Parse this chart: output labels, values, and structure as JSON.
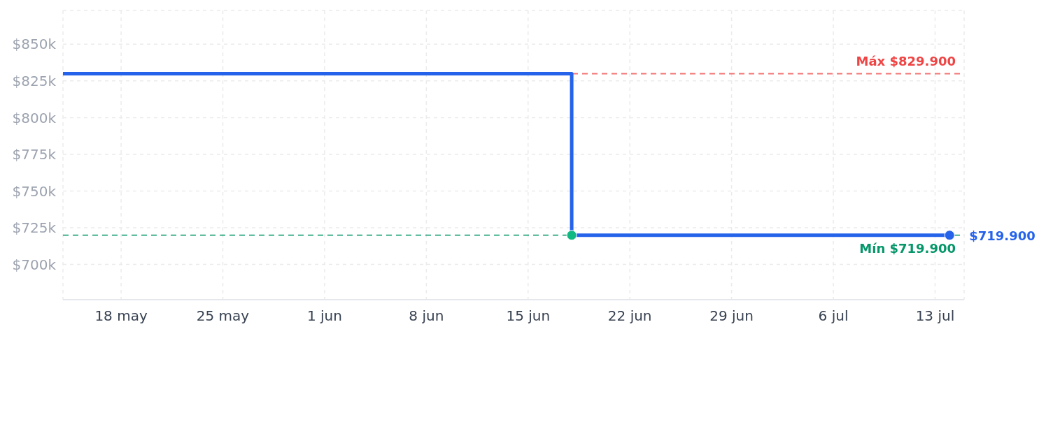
{
  "chart_data": {
    "type": "step",
    "xlim": [
      "--05-14",
      "--07-15"
    ],
    "xticks": [
      {
        "value": "--05-18",
        "label": "18 may"
      },
      {
        "value": "--05-25",
        "label": "25 may"
      },
      {
        "value": "--06-01",
        "label": "1 jun"
      },
      {
        "value": "--06-08",
        "label": "8 jun"
      },
      {
        "value": "--06-15",
        "label": "15 jun"
      },
      {
        "value": "--06-22",
        "label": "22 jun"
      },
      {
        "value": "--06-29",
        "label": "29 jun"
      },
      {
        "value": "--07-06",
        "label": "6 jul"
      },
      {
        "value": "--07-13",
        "label": "13 jul"
      }
    ],
    "ylim": [
      676000,
      873000
    ],
    "yticks": [
      {
        "value": 700000,
        "label": "$700k"
      },
      {
        "value": 725000,
        "label": "$725k"
      },
      {
        "value": 750000,
        "label": "$750k"
      },
      {
        "value": 775000,
        "label": "$775k"
      },
      {
        "value": 800000,
        "label": "$800k"
      },
      {
        "value": 825000,
        "label": "$825k"
      },
      {
        "value": 850000,
        "label": "$850k"
      }
    ],
    "grid": true,
    "line_style": "solid",
    "series": [
      {
        "color": "#2563eb",
        "marker": "none",
        "x": [
          "--05-14",
          "--06-18",
          "--07-14"
        ],
        "values": [
          829900,
          719900,
          719900
        ]
      },
      {
        "type": "scatter",
        "color": "#10b981",
        "marker": "circle",
        "x": [
          "--06-18"
        ],
        "values": [
          719900
        ]
      },
      {
        "type": "scatter",
        "color": "#2563eb",
        "marker": "circle",
        "x": [
          "--07-14"
        ],
        "values": [
          719900
        ]
      }
    ],
    "ref_lines": [
      {
        "axis": "y",
        "value": 829900,
        "label": "Máx $829.900",
        "color": "#ef4444",
        "line_style": "dashed"
      },
      {
        "axis": "y",
        "value": 719900,
        "label": "Mín $719.900",
        "color": "#059669",
        "line_style": "dashed"
      }
    ],
    "annotations": [
      {
        "text": "$719.900",
        "x": "--07-14",
        "y": 719900
      }
    ]
  }
}
